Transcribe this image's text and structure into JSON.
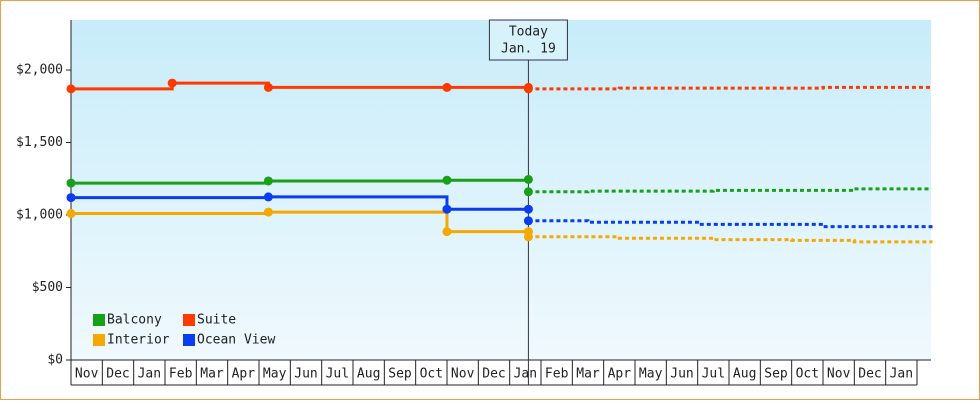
{
  "chart_data": {
    "type": "line",
    "step": true,
    "categories": [
      "Nov",
      "Dec",
      "Jan",
      "Feb",
      "Mar",
      "Apr",
      "May",
      "Jun",
      "Jul",
      "Aug",
      "Sep",
      "Oct",
      "Nov",
      "Dec",
      "Jan",
      "Feb",
      "Mar",
      "Apr",
      "May",
      "Jun",
      "Jul",
      "Aug",
      "Sep",
      "Oct",
      "Nov",
      "Dec",
      "Jan"
    ],
    "xlim": [
      0,
      27.45
    ],
    "ylim": [
      0,
      2345
    ],
    "yticks": [
      {
        "value": 0,
        "label": "$0"
      },
      {
        "value": 500,
        "label": "$500"
      },
      {
        "value": 1000,
        "label": "$1,000"
      },
      {
        "value": 1500,
        "label": "$1,500"
      },
      {
        "value": 2000,
        "label": "$2,000"
      }
    ],
    "today": {
      "label": "Today",
      "date": "Jan. 19",
      "x": 14.6
    },
    "series": [
      {
        "name": "Balcony",
        "color": "#18a018",
        "x": [
          0,
          6.3,
          12.0,
          14.6
        ],
        "values": [
          1220,
          1235,
          1240,
          1245
        ],
        "forecast_x": [
          14.6,
          16.5,
          20.5,
          25.0,
          27.45
        ],
        "forecast_values": [
          1160,
          1165,
          1170,
          1180,
          1185
        ]
      },
      {
        "name": "Suite",
        "color": "#ff3a00",
        "x": [
          0,
          3.23,
          6.3,
          12.0,
          14.6
        ],
        "values": [
          1870,
          1910,
          1880,
          1880,
          1880
        ],
        "forecast_x": [
          14.6,
          17.5,
          24.0,
          27.45
        ],
        "forecast_values": [
          1870,
          1875,
          1880,
          1880
        ]
      },
      {
        "name": "Interior",
        "color": "#f5a800",
        "x": [
          0,
          6.3,
          12.0,
          14.6
        ],
        "values": [
          1010,
          1020,
          885,
          885
        ],
        "forecast_x": [
          14.6,
          17.5,
          20.5,
          23.0,
          25.0,
          27.45
        ],
        "forecast_values": [
          850,
          840,
          830,
          825,
          815,
          805
        ]
      },
      {
        "name": "Ocean View",
        "color": "#0a3cf0",
        "x": [
          0,
          6.3,
          12.0,
          14.6
        ],
        "values": [
          1120,
          1125,
          1040,
          1040
        ],
        "forecast_x": [
          14.6,
          16.5,
          20.0,
          24.0,
          27.45
        ],
        "forecast_values": [
          960,
          950,
          935,
          920,
          905
        ]
      }
    ]
  }
}
